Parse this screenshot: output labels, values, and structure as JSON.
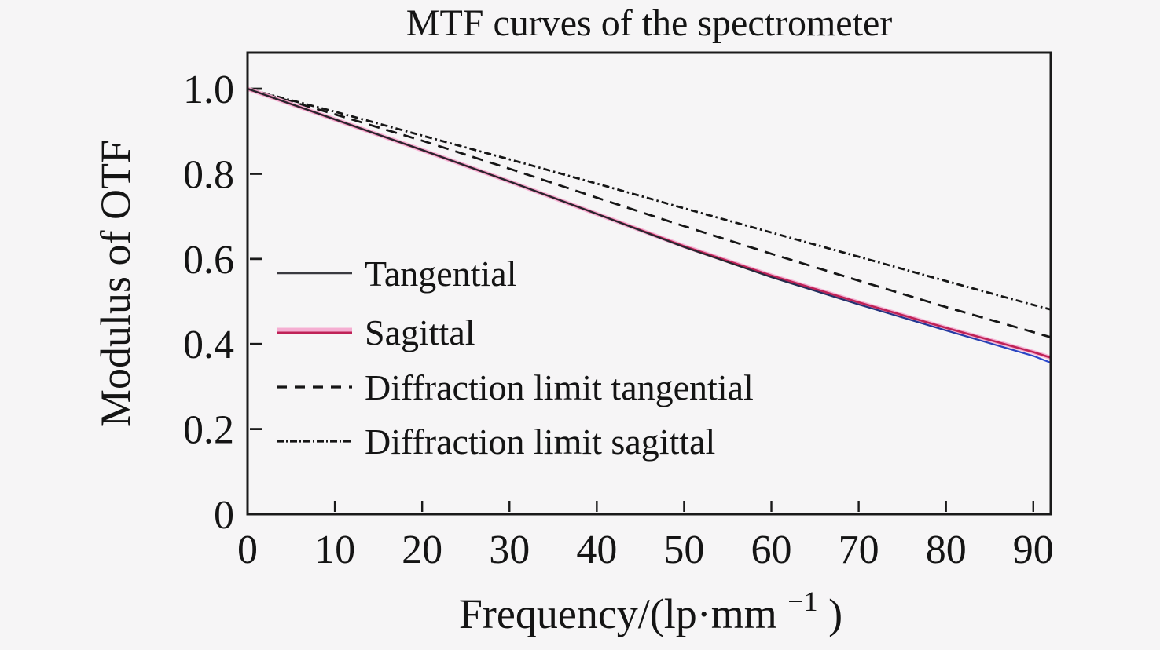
{
  "page": {
    "background_color": "#f6f5f6",
    "axis_color": "#1a1a1a",
    "text_color": "#141414"
  },
  "chart_data": {
    "type": "line",
    "title": "MTF curves of the spectrometer",
    "xlabel": {
      "prefix": "Frequency/(lp·mm",
      "sup": "−1",
      "suffix": ")"
    },
    "ylabel": "Modulus of OTF",
    "xlim": [
      0,
      92
    ],
    "ylim": [
      0,
      1.085
    ],
    "grid": false,
    "legend_position": "inside-left",
    "x_ticks": {
      "values": [
        0,
        10,
        20,
        30,
        40,
        50,
        60,
        70,
        80,
        90
      ],
      "labels": [
        "0",
        "10",
        "20",
        "30",
        "40",
        "50",
        "60",
        "70",
        "80",
        "90"
      ]
    },
    "y_ticks": {
      "values": [
        0,
        0.2,
        0.4,
        0.6,
        0.8,
        1.0
      ],
      "labels": [
        "0",
        "0.2",
        "0.4",
        "0.6",
        "0.8",
        "1.0"
      ]
    },
    "x": [
      0,
      10,
      20,
      30,
      40,
      50,
      60,
      70,
      80,
      90,
      92
    ],
    "series": [
      {
        "name": "Tangential",
        "style": "solid",
        "color": "#26262e",
        "color_end": "#2c4ad2",
        "legend_color": "#3a3a40",
        "width": 2.2,
        "values": [
          1.0,
          0.928,
          0.856,
          0.782,
          0.706,
          0.628,
          0.557,
          0.493,
          0.432,
          0.372,
          0.356
        ]
      },
      {
        "name": "Sagittal",
        "style": "solid",
        "color": "#bf2257",
        "halo_color": "#f5aed2",
        "width": 2.6,
        "values": [
          1.0,
          0.928,
          0.856,
          0.782,
          0.706,
          0.63,
          0.561,
          0.498,
          0.438,
          0.381,
          0.368
        ]
      },
      {
        "name": "Diffraction limit tangential",
        "style": "dashed",
        "color": "#161616",
        "dash": "14 9",
        "dash_legend": "13 10",
        "width": 2.8,
        "values": [
          1.0,
          0.94,
          0.878,
          0.812,
          0.744,
          0.677,
          0.612,
          0.549,
          0.487,
          0.428,
          0.416
        ]
      },
      {
        "name": "Diffraction limit sagittal",
        "style": "dash-dot",
        "color": "#161616",
        "dash": "9 4 2.5 4",
        "dash_legend": "9 3 2 3",
        "width": 2.8,
        "values": [
          1.0,
          0.946,
          0.89,
          0.834,
          0.777,
          0.719,
          0.662,
          0.605,
          0.548,
          0.492,
          0.481
        ]
      }
    ]
  }
}
